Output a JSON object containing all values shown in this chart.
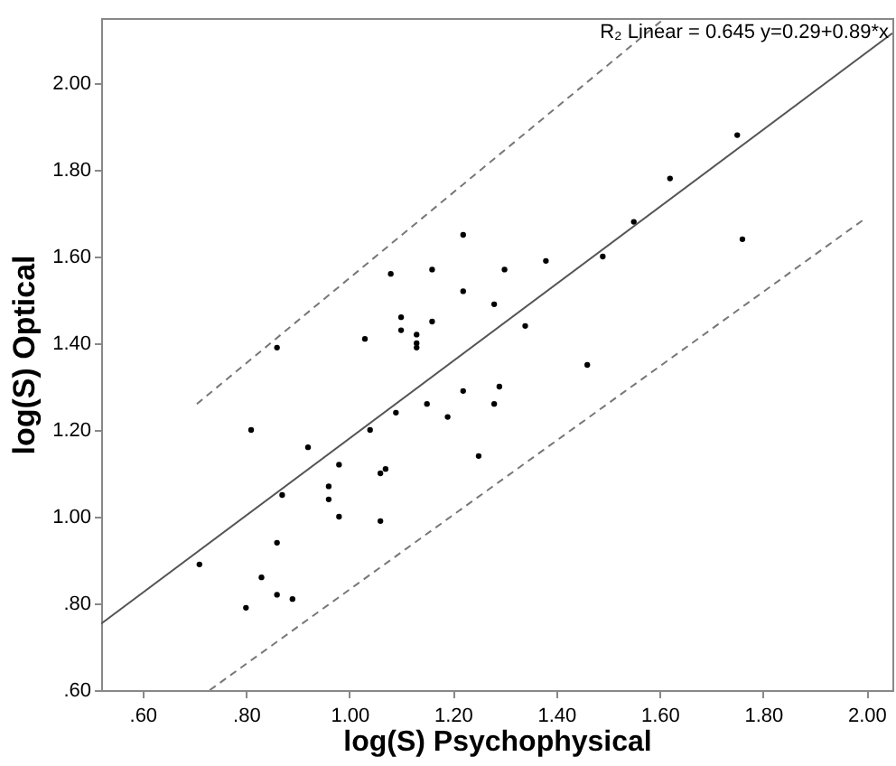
{
  "chart_data": {
    "type": "scatter",
    "xlabel": "log(S) Psychophysical",
    "ylabel": "log(S) Optical",
    "annotations": [
      "R₂ Linear = 0.645 y=0.29+0.89*x"
    ],
    "xlim": [
      0.52,
      2.05
    ],
    "ylim": [
      0.6,
      2.15
    ],
    "xticks": [
      {
        "value": 0.6,
        "label": ".60"
      },
      {
        "value": 0.8,
        "label": ".80"
      },
      {
        "value": 1.0,
        "label": "1.00"
      },
      {
        "value": 1.2,
        "label": "1.20"
      },
      {
        "value": 1.4,
        "label": "1.40"
      },
      {
        "value": 1.6,
        "label": "1.60"
      },
      {
        "value": 1.8,
        "label": "1.80"
      },
      {
        "value": 2.0,
        "label": "2.00"
      }
    ],
    "yticks": [
      {
        "value": 0.6,
        "label": ".60"
      },
      {
        "value": 0.8,
        "label": ".80"
      },
      {
        "value": 1.0,
        "label": "1.00"
      },
      {
        "value": 1.2,
        "label": "1.20"
      },
      {
        "value": 1.4,
        "label": "1.40"
      },
      {
        "value": 1.6,
        "label": "1.60"
      },
      {
        "value": 1.8,
        "label": "1.80"
      },
      {
        "value": 2.0,
        "label": "2.00"
      }
    ],
    "grid": false,
    "series": [
      {
        "marker": "circle",
        "color": "#000000",
        "x": [
          1.22,
          1.08,
          1.16,
          1.3,
          1.22,
          1.28,
          1.1,
          1.1,
          1.16,
          1.03,
          1.13,
          1.13,
          1.13,
          0.86,
          1.22,
          1.29,
          1.15,
          1.28,
          1.09,
          1.04,
          1.19,
          0.81,
          0.92,
          0.98,
          1.25,
          1.06,
          1.07,
          0.96,
          0.87,
          0.96,
          0.98,
          1.06,
          0.86,
          0.71,
          0.83,
          0.86,
          0.89,
          0.8,
          1.75,
          1.62,
          1.55,
          1.49,
          1.76,
          1.38,
          1.46,
          1.34
        ],
        "values": [
          1.65,
          1.56,
          1.57,
          1.57,
          1.52,
          1.49,
          1.46,
          1.43,
          1.45,
          1.41,
          1.42,
          1.4,
          1.39,
          1.39,
          1.29,
          1.3,
          1.26,
          1.26,
          1.24,
          1.2,
          1.23,
          1.2,
          1.16,
          1.12,
          1.14,
          1.1,
          1.11,
          1.07,
          1.05,
          1.04,
          1.0,
          0.99,
          0.94,
          0.89,
          0.86,
          0.82,
          0.81,
          0.79,
          1.88,
          1.78,
          1.68,
          1.6,
          1.64,
          1.59,
          1.35,
          1.44
        ]
      },
      {
        "type": "line",
        "color": "#555555",
        "line_style": "solid",
        "x": [
          0.52,
          2.05
        ],
        "values": [
          0.753,
          2.115
        ]
      },
      {
        "type": "line",
        "color": "#777777",
        "line_style": "dashed",
        "x": [
          0.705,
          1.61
        ],
        "values": [
          1.26,
          2.15
        ]
      },
      {
        "type": "line",
        "color": "#777777",
        "line_style": "dashed",
        "x": [
          0.73,
          2.0
        ],
        "values": [
          0.6,
          1.69
        ]
      }
    ]
  }
}
